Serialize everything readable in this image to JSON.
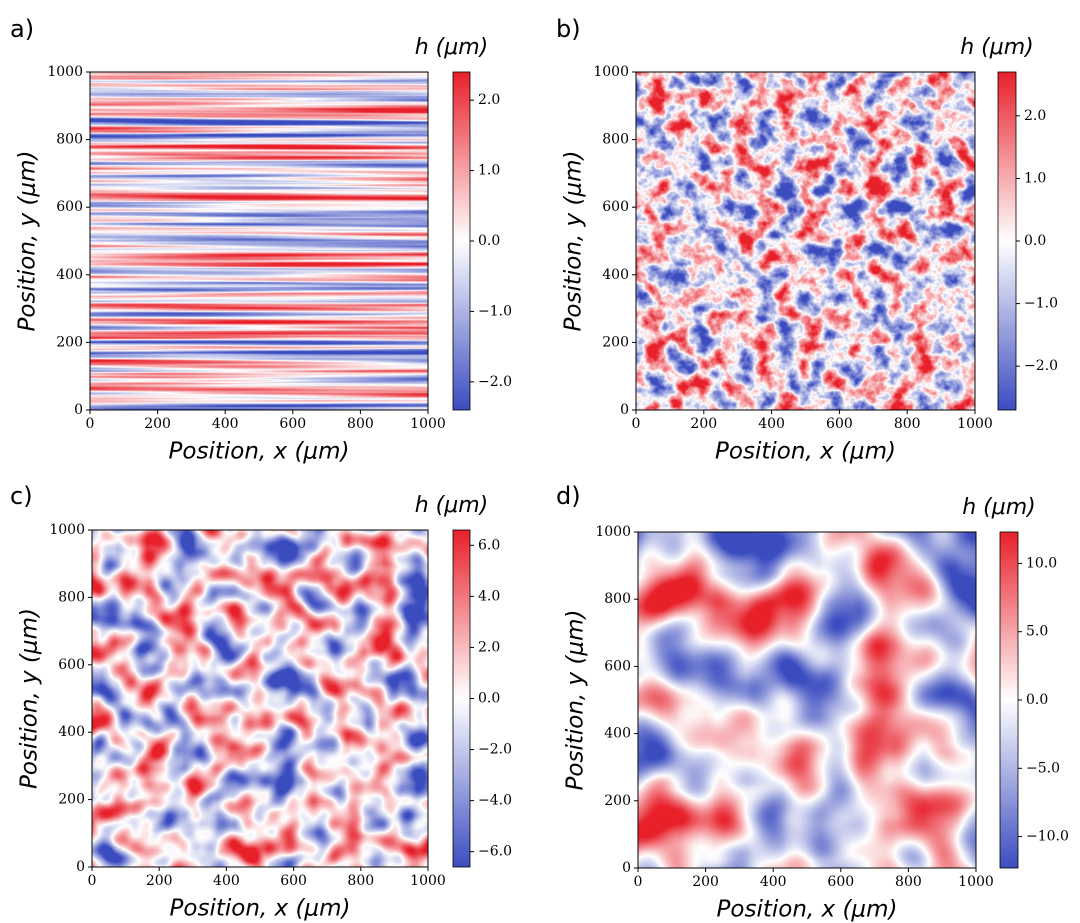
{
  "chart_data": [
    {
      "type": "heatmap",
      "panel_label": "a)",
      "xlabel": "Position, x (μm)",
      "ylabel": "Position, y (μm)",
      "colorbar_label": "h (μm)",
      "xlim": [
        0,
        1000
      ],
      "ylim": [
        0,
        1000
      ],
      "xticks": [
        0,
        200,
        400,
        600,
        800,
        1000
      ],
      "yticks": [
        0,
        200,
        400,
        600,
        800,
        1000
      ],
      "clim": [
        -2.4,
        2.4
      ],
      "colors": [
        "#3b4cc0",
        "#ffffff",
        "#e8202a"
      ],
      "cticks": [
        {
          "value": -2,
          "label": "−2.0"
        },
        {
          "value": -1,
          "label": "−1.0"
        },
        {
          "value": 0,
          "label": "0.0"
        },
        {
          "value": 1,
          "label": "1.0"
        },
        {
          "value": 2,
          "label": "2.0"
        }
      ]
    },
    {
      "type": "heatmap",
      "panel_label": "b)",
      "xlabel": "Position, x (μm)",
      "ylabel": "Position, y (μm)",
      "colorbar_label": "h (μm)",
      "xlim": [
        0,
        1000
      ],
      "ylim": [
        0,
        1000
      ],
      "xticks": [
        0,
        200,
        400,
        600,
        800,
        1000
      ],
      "yticks": [
        0,
        200,
        400,
        600,
        800,
        1000
      ],
      "clim": [
        -2.7,
        2.7
      ],
      "colors": [
        "#3b4cc0",
        "#ffffff",
        "#e8202a"
      ],
      "cticks": [
        {
          "value": -2,
          "label": "−2.0"
        },
        {
          "value": -1,
          "label": "−1.0"
        },
        {
          "value": 0,
          "label": "0.0"
        },
        {
          "value": 1,
          "label": "1.0"
        },
        {
          "value": 2,
          "label": "2.0"
        }
      ]
    },
    {
      "type": "heatmap",
      "panel_label": "c)",
      "xlabel": "Position, x (μm)",
      "ylabel": "Position, y (μm)",
      "colorbar_label": "h (μm)",
      "xlim": [
        0,
        1000
      ],
      "ylim": [
        0,
        1000
      ],
      "xticks": [
        0,
        200,
        400,
        600,
        800,
        1000
      ],
      "yticks": [
        0,
        200,
        400,
        600,
        800,
        1000
      ],
      "clim": [
        -6.6,
        6.6
      ],
      "colors": [
        "#3b4cc0",
        "#ffffff",
        "#e8202a"
      ],
      "cticks": [
        {
          "value": -6,
          "label": "−6.0"
        },
        {
          "value": -4,
          "label": "−4.0"
        },
        {
          "value": -2,
          "label": "−2.0"
        },
        {
          "value": 0,
          "label": "0.0"
        },
        {
          "value": 2,
          "label": "2.0"
        },
        {
          "value": 4,
          "label": "4.0"
        },
        {
          "value": 6,
          "label": "6.0"
        }
      ]
    },
    {
      "type": "heatmap",
      "panel_label": "d)",
      "xlabel": "Position, x (μm)",
      "ylabel": "Position, y (μm)",
      "colorbar_label": "h (μm)",
      "xlim": [
        0,
        1000
      ],
      "ylim": [
        0,
        1000
      ],
      "xticks": [
        0,
        200,
        400,
        600,
        800,
        1000
      ],
      "yticks": [
        0,
        200,
        400,
        600,
        800,
        1000
      ],
      "clim": [
        -12.3,
        12.3
      ],
      "colors": [
        "#3b4cc0",
        "#ffffff",
        "#e8202a"
      ],
      "cticks": [
        {
          "value": -10,
          "label": "−10.0"
        },
        {
          "value": -5,
          "label": "−5.0"
        },
        {
          "value": 0,
          "label": "0.0"
        },
        {
          "value": 5,
          "label": "5.0"
        },
        {
          "value": 10,
          "label": "10.0"
        }
      ]
    }
  ]
}
